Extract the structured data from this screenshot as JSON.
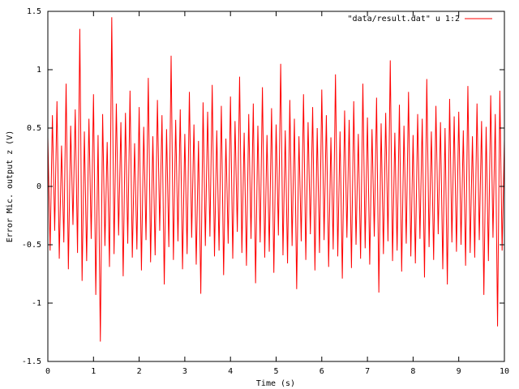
{
  "chart_data": {
    "type": "line",
    "xlabel": "Time (s)",
    "ylabel": "Error Mic. output z (V)",
    "xlim": [
      0,
      10
    ],
    "ylim": [
      -1.5,
      1.5
    ],
    "xticks": [
      0,
      1,
      2,
      3,
      4,
      5,
      6,
      7,
      8,
      9,
      10
    ],
    "yticks": [
      -1.5,
      -1,
      -0.5,
      0,
      0.5,
      1,
      1.5
    ],
    "legend": "top-right",
    "x": [
      0,
      0.05,
      0.1,
      0.15,
      0.2,
      0.25,
      0.3,
      0.35,
      0.4,
      0.45,
      0.5,
      0.55,
      0.6,
      0.65,
      0.7,
      0.75,
      0.8,
      0.85,
      0.9,
      0.95,
      1,
      1.05,
      1.1,
      1.15,
      1.2,
      1.25,
      1.3,
      1.35,
      1.4,
      1.45,
      1.5,
      1.55,
      1.6,
      1.65,
      1.7,
      1.75,
      1.8,
      1.85,
      1.9,
      1.95,
      2,
      2.05,
      2.1,
      2.15,
      2.2,
      2.25,
      2.3,
      2.35,
      2.4,
      2.45,
      2.5,
      2.55,
      2.6,
      2.65,
      2.7,
      2.75,
      2.8,
      2.85,
      2.9,
      2.95,
      3,
      3.05,
      3.1,
      3.15,
      3.2,
      3.25,
      3.3,
      3.35,
      3.4,
      3.45,
      3.5,
      3.55,
      3.6,
      3.65,
      3.7,
      3.75,
      3.8,
      3.85,
      3.9,
      3.95,
      4,
      4.05,
      4.1,
      4.15,
      4.2,
      4.25,
      4.3,
      4.35,
      4.4,
      4.45,
      4.5,
      4.55,
      4.6,
      4.65,
      4.7,
      4.75,
      4.8,
      4.85,
      4.9,
      4.95,
      5,
      5.05,
      5.1,
      5.15,
      5.2,
      5.25,
      5.3,
      5.35,
      5.4,
      5.45,
      5.5,
      5.55,
      5.6,
      5.65,
      5.7,
      5.75,
      5.8,
      5.85,
      5.9,
      5.95,
      6,
      6.05,
      6.1,
      6.15,
      6.2,
      6.25,
      6.3,
      6.35,
      6.4,
      6.45,
      6.5,
      6.55,
      6.6,
      6.65,
      6.7,
      6.75,
      6.8,
      6.85,
      6.9,
      6.95,
      7,
      7.05,
      7.1,
      7.15,
      7.2,
      7.25,
      7.3,
      7.35,
      7.4,
      7.45,
      7.5,
      7.55,
      7.6,
      7.65,
      7.7,
      7.75,
      7.8,
      7.85,
      7.9,
      7.95,
      8,
      8.05,
      8.1,
      8.15,
      8.2,
      8.25,
      8.3,
      8.35,
      8.4,
      8.45,
      8.5,
      8.55,
      8.6,
      8.65,
      8.7,
      8.75,
      8.8,
      8.85,
      8.9,
      8.95,
      9,
      9.05,
      9.1,
      9.15,
      9.2,
      9.25,
      9.3,
      9.35,
      9.4,
      9.45,
      9.5,
      9.55,
      9.6,
      9.65,
      9.7,
      9.75,
      9.8,
      9.85,
      9.9,
      9.95,
      10
    ],
    "series": [
      {
        "name": "\"data/result.dat\" u 1:2",
        "color": "#ff0000",
        "values": [
          0.42,
          -0.55,
          0.61,
          -0.38,
          0.73,
          -0.62,
          0.35,
          -0.48,
          0.88,
          -0.71,
          0.52,
          -0.33,
          0.66,
          -0.57,
          1.35,
          -0.81,
          0.47,
          -0.64,
          0.58,
          -0.45,
          0.79,
          -0.93,
          0.44,
          -1.33,
          0.62,
          -0.51,
          0.38,
          -0.69,
          1.45,
          -0.58,
          0.71,
          -0.42,
          0.55,
          -0.77,
          0.63,
          -0.49,
          0.82,
          -0.61,
          0.37,
          -0.54,
          0.68,
          -0.72,
          0.51,
          -0.46,
          0.93,
          -0.65,
          0.43,
          -0.59,
          0.74,
          -0.38,
          0.61,
          -0.84,
          0.49,
          -0.52,
          1.12,
          -0.63,
          0.57,
          -0.47,
          0.66,
          -0.71,
          0.45,
          -0.58,
          0.81,
          -0.44,
          0.53,
          -0.67,
          0.39,
          -0.92,
          0.72,
          -0.51,
          0.64,
          -0.43,
          0.87,
          -0.6,
          0.48,
          -0.55,
          0.69,
          -0.76,
          0.41,
          -0.49,
          0.77,
          -0.62,
          0.56,
          -0.39,
          0.94,
          -0.57,
          0.46,
          -0.68,
          0.62,
          -0.45,
          0.71,
          -0.83,
          0.52,
          -0.48,
          0.85,
          -0.61,
          0.44,
          -0.56,
          0.67,
          -0.74,
          0.53,
          -0.42,
          1.05,
          -0.59,
          0.48,
          -0.66,
          0.74,
          -0.51,
          0.58,
          -0.88,
          0.43,
          -0.47,
          0.79,
          -0.63,
          0.55,
          -0.41,
          0.68,
          -0.72,
          0.5,
          -0.57,
          0.83,
          -0.46,
          0.61,
          -0.69,
          0.42,
          -0.54,
          0.96,
          -0.6,
          0.47,
          -0.79,
          0.65,
          -0.44,
          0.57,
          -0.7,
          0.73,
          -0.5,
          0.45,
          -0.62,
          0.88,
          -0.53,
          0.59,
          -0.67,
          0.49,
          -0.43,
          0.76,
          -0.91,
          0.54,
          -0.58,
          0.63,
          -0.47,
          1.08,
          -0.64,
          0.46,
          -0.55,
          0.7,
          -0.73,
          0.52,
          -0.49,
          0.81,
          -0.6,
          0.44,
          -0.66,
          0.62,
          -0.45,
          0.58,
          -0.78,
          0.92,
          -0.52,
          0.47,
          -0.63,
          0.69,
          -0.41,
          0.55,
          -0.71,
          0.5,
          -0.84,
          0.75,
          -0.48,
          0.6,
          -0.56,
          0.64,
          -0.5,
          0.48,
          -0.68,
          0.86,
          -0.57,
          0.43,
          -0.61,
          0.71,
          -0.46,
          0.56,
          -0.93,
          0.51,
          -0.64,
          0.78,
          -0.44,
          0.62,
          -1.2,
          0.82,
          -0.55,
          0.4
        ]
      }
    ]
  }
}
